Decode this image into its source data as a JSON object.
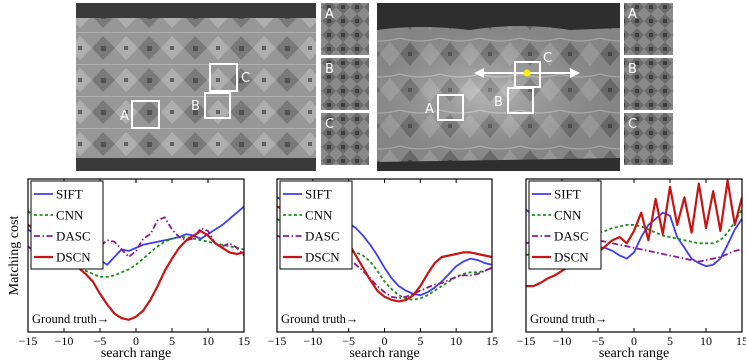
{
  "photos": [
    {
      "boxes": [
        {
          "label": "A"
        },
        {
          "label": "B"
        },
        {
          "label": "C"
        }
      ],
      "crops": [
        "A",
        "B",
        "C"
      ]
    },
    {
      "boxes": [
        {
          "label": "A"
        },
        {
          "label": "B"
        },
        {
          "label": "C"
        }
      ],
      "crops": [
        "A",
        "B",
        "C"
      ]
    }
  ],
  "colors": {
    "SIFT": "#3d3df0",
    "CNN": "#1a8c1a",
    "DASC": "#8b1a8b",
    "DSCN": "#c81414"
  },
  "chart_data": [
    {
      "type": "line",
      "xlabel": "search range",
      "ylabel": "Matching cost",
      "xlim": [
        -15,
        15
      ],
      "xticks": [
        -15,
        -10,
        -5,
        0,
        5,
        10,
        15
      ],
      "tick_labels": [
        "−15",
        "−10",
        "−5",
        "0",
        "5",
        "10",
        "15"
      ],
      "ylim": [
        0,
        1
      ],
      "legend": "top-left",
      "annotation": "Ground truth→",
      "x": [
        -15,
        -14,
        -13,
        -12,
        -11,
        -10,
        -9,
        -8,
        -7,
        -6,
        -5,
        -4,
        -3,
        -2,
        -1,
        0,
        1,
        2,
        3,
        4,
        5,
        6,
        7,
        8,
        9,
        10,
        11,
        12,
        13,
        14,
        15
      ],
      "series": [
        {
          "name": "SIFT",
          "style": "solid",
          "values": [
            0.67,
            0.64,
            0.62,
            0.6,
            0.57,
            0.58,
            0.6,
            0.61,
            0.56,
            0.55,
            0.47,
            0.44,
            0.49,
            0.54,
            0.53,
            0.55,
            0.57,
            0.58,
            0.59,
            0.6,
            0.61,
            0.62,
            0.64,
            0.63,
            0.61,
            0.64,
            0.67,
            0.7,
            0.74,
            0.78,
            0.82
          ]
        },
        {
          "name": "CNN",
          "style": "dotted",
          "values": [
            0.79,
            0.75,
            0.7,
            0.65,
            0.6,
            0.55,
            0.49,
            0.44,
            0.4,
            0.38,
            0.36,
            0.36,
            0.37,
            0.39,
            0.41,
            0.44,
            0.48,
            0.52,
            0.56,
            0.59,
            0.61,
            0.62,
            0.62,
            0.61,
            0.6,
            0.59,
            0.58,
            0.57,
            0.56,
            0.55,
            0.54
          ]
        },
        {
          "name": "DASC",
          "style": "dashdot",
          "values": [
            0.56,
            0.52,
            0.55,
            0.61,
            0.52,
            0.49,
            0.56,
            0.48,
            0.45,
            0.5,
            0.56,
            0.6,
            0.59,
            0.54,
            0.49,
            0.53,
            0.61,
            0.64,
            0.73,
            0.75,
            0.67,
            0.62,
            0.6,
            0.61,
            0.68,
            0.66,
            0.58,
            0.56,
            0.58,
            0.55,
            0.5
          ]
        },
        {
          "name": "DSCN",
          "style": "solid",
          "values": [
            0.7,
            0.67,
            0.63,
            0.58,
            0.52,
            0.47,
            0.44,
            0.42,
            0.38,
            0.33,
            0.25,
            0.18,
            0.12,
            0.09,
            0.08,
            0.1,
            0.14,
            0.21,
            0.3,
            0.4,
            0.48,
            0.55,
            0.6,
            0.63,
            0.66,
            0.63,
            0.58,
            0.55,
            0.52,
            0.51,
            0.52
          ]
        }
      ]
    },
    {
      "type": "line",
      "xlabel": "search range",
      "ylabel": "",
      "xlim": [
        -15,
        15
      ],
      "xticks": [
        -15,
        -10,
        -5,
        0,
        5,
        10,
        15
      ],
      "tick_labels": [
        "−15",
        "−10",
        "−5",
        "0",
        "5",
        "10",
        "15"
      ],
      "ylim": [
        0,
        1
      ],
      "legend": "top-left",
      "annotation": "Ground truth→",
      "x": [
        -15,
        -14,
        -13,
        -12,
        -11,
        -10,
        -9,
        -8,
        -7,
        -6,
        -5,
        -4,
        -3,
        -2,
        -1,
        0,
        1,
        2,
        3,
        4,
        5,
        6,
        7,
        8,
        9,
        10,
        11,
        12,
        13,
        14,
        15
      ],
      "series": [
        {
          "name": "SIFT",
          "style": "solid",
          "values": [
            0.88,
            0.86,
            0.85,
            0.83,
            0.81,
            0.8,
            0.79,
            0.78,
            0.76,
            0.74,
            0.71,
            0.68,
            0.63,
            0.57,
            0.5,
            0.42,
            0.35,
            0.3,
            0.27,
            0.25,
            0.24,
            0.26,
            0.29,
            0.33,
            0.38,
            0.43,
            0.46,
            0.48,
            0.47,
            0.45,
            0.44
          ]
        },
        {
          "name": "CNN",
          "style": "dotted",
          "values": [
            0.74,
            0.71,
            0.68,
            0.66,
            0.63,
            0.61,
            0.59,
            0.57,
            0.55,
            0.54,
            0.53,
            0.52,
            0.5,
            0.46,
            0.4,
            0.33,
            0.28,
            0.24,
            0.22,
            0.21,
            0.22,
            0.24,
            0.27,
            0.3,
            0.33,
            0.36,
            0.38,
            0.39,
            0.39,
            0.4,
            0.42
          ]
        },
        {
          "name": "DASC",
          "style": "dashdot",
          "values": [
            0.63,
            0.61,
            0.59,
            0.58,
            0.6,
            0.62,
            0.6,
            0.57,
            0.54,
            0.51,
            0.48,
            0.44,
            0.4,
            0.35,
            0.3,
            0.26,
            0.23,
            0.22,
            0.23,
            0.25,
            0.27,
            0.29,
            0.31,
            0.32,
            0.34,
            0.36,
            0.37,
            0.37,
            0.38,
            0.4,
            0.42
          ]
        },
        {
          "name": "DSCN",
          "style": "solid",
          "values": [
            0.82,
            0.8,
            0.79,
            0.78,
            0.76,
            0.75,
            0.73,
            0.71,
            0.68,
            0.64,
            0.58,
            0.5,
            0.42,
            0.34,
            0.27,
            0.23,
            0.21,
            0.2,
            0.21,
            0.24,
            0.3,
            0.38,
            0.45,
            0.49,
            0.5,
            0.51,
            0.52,
            0.52,
            0.51,
            0.5,
            0.49
          ]
        }
      ]
    },
    {
      "type": "line",
      "xlabel": "search range",
      "ylabel": "",
      "xlim": [
        -15,
        15
      ],
      "xticks": [
        -15,
        -10,
        -5,
        0,
        5,
        10,
        15
      ],
      "tick_labels": [
        "−15",
        "−10",
        "−5",
        "0",
        "5",
        "10",
        "15"
      ],
      "ylim": [
        0,
        1
      ],
      "legend": "top-left",
      "annotation": "Ground truth→",
      "x": [
        -15,
        -14,
        -13,
        -12,
        -11,
        -10,
        -9,
        -8,
        -7,
        -6,
        -5,
        -4,
        -3,
        -2,
        -1,
        0,
        1,
        2,
        3,
        4,
        5,
        6,
        7,
        8,
        9,
        10,
        11,
        12,
        13,
        14,
        15
      ],
      "series": [
        {
          "name": "SIFT",
          "style": "solid",
          "values": [
            0.8,
            0.76,
            0.72,
            0.69,
            0.66,
            0.63,
            0.62,
            0.6,
            0.58,
            0.56,
            0.55,
            0.55,
            0.53,
            0.5,
            0.48,
            0.52,
            0.62,
            0.7,
            0.74,
            0.78,
            0.76,
            0.62,
            0.55,
            0.48,
            0.45,
            0.43,
            0.44,
            0.48,
            0.57,
            0.67,
            0.74
          ]
        },
        {
          "name": "CNN",
          "style": "dotted",
          "values": [
            0.5,
            0.52,
            0.54,
            0.56,
            0.58,
            0.6,
            0.61,
            0.62,
            0.63,
            0.64,
            0.65,
            0.66,
            0.68,
            0.69,
            0.7,
            0.7,
            0.69,
            0.67,
            0.65,
            0.63,
            0.62,
            0.61,
            0.6,
            0.59,
            0.58,
            0.58,
            0.58,
            0.6,
            0.65,
            0.72,
            0.8
          ]
        },
        {
          "name": "DASC",
          "style": "dashdot",
          "values": [
            0.58,
            0.59,
            0.6,
            0.61,
            0.61,
            0.62,
            0.62,
            0.62,
            0.62,
            0.61,
            0.6,
            0.59,
            0.58,
            0.57,
            0.56,
            0.55,
            0.54,
            0.53,
            0.52,
            0.51,
            0.5,
            0.49,
            0.48,
            0.47,
            0.46,
            0.47,
            0.48,
            0.49,
            0.51,
            0.53,
            0.54
          ]
        },
        {
          "name": "DSCN",
          "style": "solid",
          "values": [
            0.3,
            0.3,
            0.32,
            0.35,
            0.37,
            0.4,
            0.43,
            0.45,
            0.48,
            0.5,
            0.52,
            0.56,
            0.6,
            0.62,
            0.58,
            0.66,
            0.78,
            0.6,
            0.87,
            0.64,
            0.95,
            0.7,
            0.88,
            0.65,
            0.97,
            0.68,
            0.92,
            0.66,
            0.99,
            0.7,
            0.88
          ]
        }
      ]
    }
  ]
}
